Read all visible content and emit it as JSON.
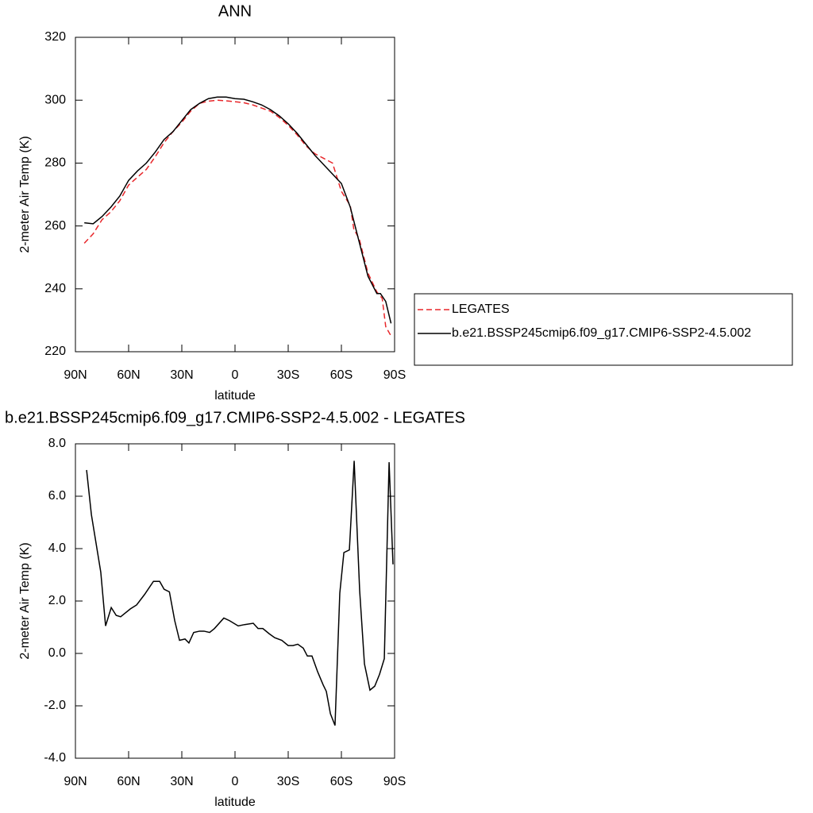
{
  "chart_data": [
    {
      "type": "line",
      "title": "ANN",
      "x_label": "latitude",
      "y_label": "2-meter Air Temp (K)",
      "xlim": [
        90,
        -90
      ],
      "xticks": [
        {
          "value": 90,
          "label": "90N"
        },
        {
          "value": 60,
          "label": "60N"
        },
        {
          "value": 30,
          "label": "30N"
        },
        0,
        {
          "value": -30,
          "label": "30S"
        },
        {
          "value": -60,
          "label": "60S"
        },
        {
          "value": -90,
          "label": "90S"
        }
      ],
      "ylim": [
        220,
        320
      ],
      "yticks": [
        220,
        240,
        260,
        280,
        300,
        320
      ],
      "legend": "right",
      "series": [
        {
          "name": "LEGATES",
          "color": "#e8262a",
          "dashed": true,
          "x": [
            85,
            80,
            75,
            70,
            65,
            60,
            55,
            50,
            45,
            40,
            35,
            30,
            25,
            20,
            15,
            10,
            5,
            0,
            -5,
            -10,
            -15,
            -20,
            -25,
            -30,
            -35,
            -40,
            -45,
            -50,
            -55,
            -60,
            -65,
            -67,
            -70,
            -75,
            -80,
            -83,
            -85,
            -88
          ],
          "values": [
            254.5,
            257.5,
            262,
            264.5,
            268,
            273,
            275.5,
            278,
            282,
            286.5,
            290,
            293,
            296.5,
            299,
            299.7,
            300,
            299.8,
            299.5,
            299.2,
            298.5,
            297.5,
            296.5,
            294.5,
            292,
            289,
            285.5,
            283,
            281.5,
            280,
            271,
            266.5,
            259,
            256,
            245,
            239,
            237,
            228,
            225
          ]
        },
        {
          "name": "b.e21.BSSP245cmip6.f09_g17.CMIP6-SSP2-4.5.002",
          "color": "#000000",
          "dashed": false,
          "x": [
            85,
            80,
            75,
            70,
            65,
            60,
            55,
            50,
            45,
            40,
            35,
            30,
            25,
            20,
            15,
            10,
            5,
            0,
            -5,
            -10,
            -15,
            -20,
            -25,
            -30,
            -35,
            -40,
            -45,
            -50,
            -55,
            -60,
            -65,
            -70,
            -75,
            -80,
            -82,
            -85,
            -88
          ],
          "values": [
            261,
            260.7,
            263,
            266,
            269.5,
            274.5,
            277.5,
            280,
            283.5,
            287.5,
            290,
            293.5,
            297,
            299,
            300.5,
            301,
            301,
            300.5,
            300.3,
            299.5,
            298.5,
            297,
            295,
            292.5,
            289.5,
            286,
            282.5,
            279.5,
            276.5,
            273.5,
            266,
            255,
            244,
            238.5,
            238.5,
            236,
            229
          ]
        }
      ]
    },
    {
      "type": "line",
      "title": "b.e21.BSSP245cmip6.f09_g17.CMIP6-SSP2-4.5.002 - LEGATES",
      "x_label": "latitude",
      "y_label": "2-meter Air Temp (K)",
      "xlim": [
        90,
        -90
      ],
      "xticks": [
        {
          "value": 90,
          "label": "90N"
        },
        {
          "value": 60,
          "label": "60N"
        },
        {
          "value": 30,
          "label": "30N"
        },
        0,
        {
          "value": -30,
          "label": "30S"
        },
        {
          "value": -60,
          "label": "60S"
        },
        {
          "value": -90,
          "label": "90S"
        }
      ],
      "ylim": [
        -4,
        8
      ],
      "yticks": [
        {
          "value": -4,
          "label": "-4.0"
        },
        {
          "value": -2,
          "label": "-2.0"
        },
        {
          "value": 0,
          "label": "0.0"
        },
        {
          "value": 2,
          "label": "2.0"
        },
        {
          "value": 4,
          "label": "4.0"
        },
        {
          "value": 6,
          "label": "6.0"
        },
        {
          "value": 8,
          "label": "8.0"
        }
      ],
      "series": [
        {
          "color": "#000000",
          "dashed": false,
          "x": [
            83.7,
            81,
            75.7,
            73,
            69.8,
            67,
            64.5,
            59,
            55.5,
            51,
            46,
            42.5,
            40,
            37,
            34,
            31.3,
            28.2,
            26,
            23.3,
            20,
            17.5,
            14.3,
            11.6,
            6.3,
            3.1,
            -1.8,
            -5.4,
            -10.3,
            -13,
            -15.7,
            -19.3,
            -22.4,
            -26.4,
            -30,
            -32.7,
            -35.4,
            -38.5,
            -40.8,
            -43.4,
            -46.6,
            -49.7,
            -51.5,
            -53.8,
            -56.4,
            -59.1,
            -61.4,
            -64.5,
            -67.2,
            -70.3,
            -73,
            -76.1,
            -78.8,
            -81.5,
            -84.2,
            -86.9,
            -89.1
          ],
          "values": [
            7.0,
            5.3,
            3.1,
            1.05,
            1.75,
            1.45,
            1.4,
            1.7,
            1.85,
            2.25,
            2.75,
            2.75,
            2.45,
            2.35,
            1.25,
            0.5,
            0.55,
            0.4,
            0.8,
            0.85,
            0.85,
            0.8,
            0.95,
            1.35,
            1.25,
            1.05,
            1.1,
            1.15,
            0.95,
            0.95,
            0.75,
            0.6,
            0.5,
            0.3,
            0.3,
            0.35,
            0.2,
            -0.1,
            -0.1,
            -0.7,
            -1.2,
            -1.45,
            -2.3,
            -2.75,
            2.3,
            3.85,
            3.95,
            7.35,
            2.4,
            -0.4,
            -1.4,
            -1.25,
            -0.8,
            -0.2,
            7.3,
            3.4
          ]
        }
      ]
    }
  ]
}
